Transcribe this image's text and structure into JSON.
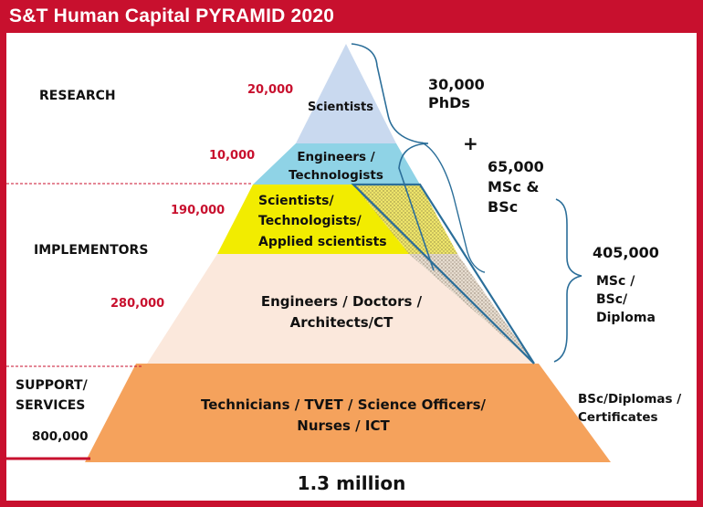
{
  "title": "S&T Human Capital PYRAMID 2020",
  "colors": {
    "frame": "#c8102e",
    "tier_scientists": "#c9d9ef",
    "tier_engineers_technologists": "#8fd3e6",
    "tier_applied": "#f2ec00",
    "tier_engineers_doctors": "#fbe8dc",
    "tier_technicians": "#f5a25c",
    "highlight_outline": "#2b6e99",
    "counts_red": "#c8102e"
  },
  "categories": {
    "research": "RESEARCH",
    "implementors": "IMPLEMENTORS",
    "support_line1": "SUPPORT/",
    "support_line2": "SERVICES"
  },
  "tiers": [
    {
      "count": "20,000",
      "line1": "Scientists",
      "line2": ""
    },
    {
      "count": "10,000",
      "line1": "Engineers /",
      "line2": "Technologists"
    },
    {
      "count": "190,000",
      "line1": "Scientists/",
      "line2": "Technologists/",
      "line3": "Applied scientists"
    },
    {
      "count": "280,000",
      "line1": "Engineers / Doctors /",
      "line2": "Architects/CT"
    },
    {
      "count": "800,000",
      "line1": "Technicians / TVET / Science Officers/",
      "line2": "Nurses / ICT"
    }
  ],
  "right_labels": {
    "phd_count": "30,000",
    "phd_label": "PhDs",
    "plus": "+",
    "msc_count": "65,000",
    "msc_label1": "MSc &",
    "msc_label2": "BSc",
    "diploma_count": "405,000",
    "diploma_label1": "MSc /",
    "diploma_label2": "BSc/",
    "diploma_label3": "Diploma",
    "support_label1": "BSc/Diplomas /",
    "support_label2": "Certificates"
  },
  "total": "1.3 million"
}
